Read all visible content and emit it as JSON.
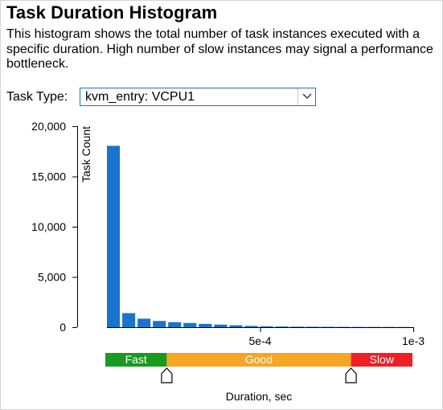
{
  "title": "Task Duration Histogram",
  "description": "This histogram shows the total number of task instances executed with a specific duration. High number of slow instances may signal a performance bottleneck.",
  "task_type": {
    "label": "Task Type:",
    "selected": "kvm_entry: VCPU1",
    "dropdown_icon": "chevron-down-icon"
  },
  "chart_data": {
    "type": "bar",
    "ylabel": "Task Count",
    "xlabel": "Duration, sec",
    "ylim": [
      0,
      20000
    ],
    "xlim": [
      0,
      0.001055
    ],
    "grid": false,
    "y_ticks": [
      {
        "value": 0,
        "label": "0"
      },
      {
        "value": 5000,
        "label": "5,000"
      },
      {
        "value": 10000,
        "label": "10,000"
      },
      {
        "value": 15000,
        "label": "15,000"
      },
      {
        "value": 20000,
        "label": "20,000"
      }
    ],
    "x_ticks": [
      {
        "value": 0.0005,
        "label": "5e-4"
      },
      {
        "value": 0.001,
        "label": "1e-3"
      }
    ],
    "bar_color": "#1874cd",
    "bins": [
      {
        "x": 0.0,
        "count": 18050
      },
      {
        "x": 5e-05,
        "count": 1400
      },
      {
        "x": 0.0001,
        "count": 850
      },
      {
        "x": 0.00015,
        "count": 620
      },
      {
        "x": 0.0002,
        "count": 500
      },
      {
        "x": 0.00025,
        "count": 420
      },
      {
        "x": 0.0003,
        "count": 330
      },
      {
        "x": 0.00035,
        "count": 260
      },
      {
        "x": 0.0004,
        "count": 190
      },
      {
        "x": 0.00045,
        "count": 130
      },
      {
        "x": 0.0005,
        "count": 90
      },
      {
        "x": 0.00055,
        "count": 70
      },
      {
        "x": 0.0006,
        "count": 55
      },
      {
        "x": 0.00065,
        "count": 45
      },
      {
        "x": 0.0007,
        "count": 40
      },
      {
        "x": 0.00075,
        "count": 35
      },
      {
        "x": 0.0008,
        "count": 30
      },
      {
        "x": 0.00085,
        "count": 28
      },
      {
        "x": 0.0009,
        "count": 25
      },
      {
        "x": 0.00095,
        "count": 20
      }
    ],
    "bin_width": 5e-05,
    "ranges": [
      {
        "label": "Fast",
        "from": 0,
        "to": 0.0002,
        "color": "#1a9a1f"
      },
      {
        "label": "Good",
        "from": 0.0002,
        "to": 0.0008,
        "color": "#f5a623"
      },
      {
        "label": "Slow",
        "from": 0.0008,
        "to": 0.001,
        "color": "#ee2026"
      }
    ],
    "handle_icon": "slider-handle-icon"
  }
}
